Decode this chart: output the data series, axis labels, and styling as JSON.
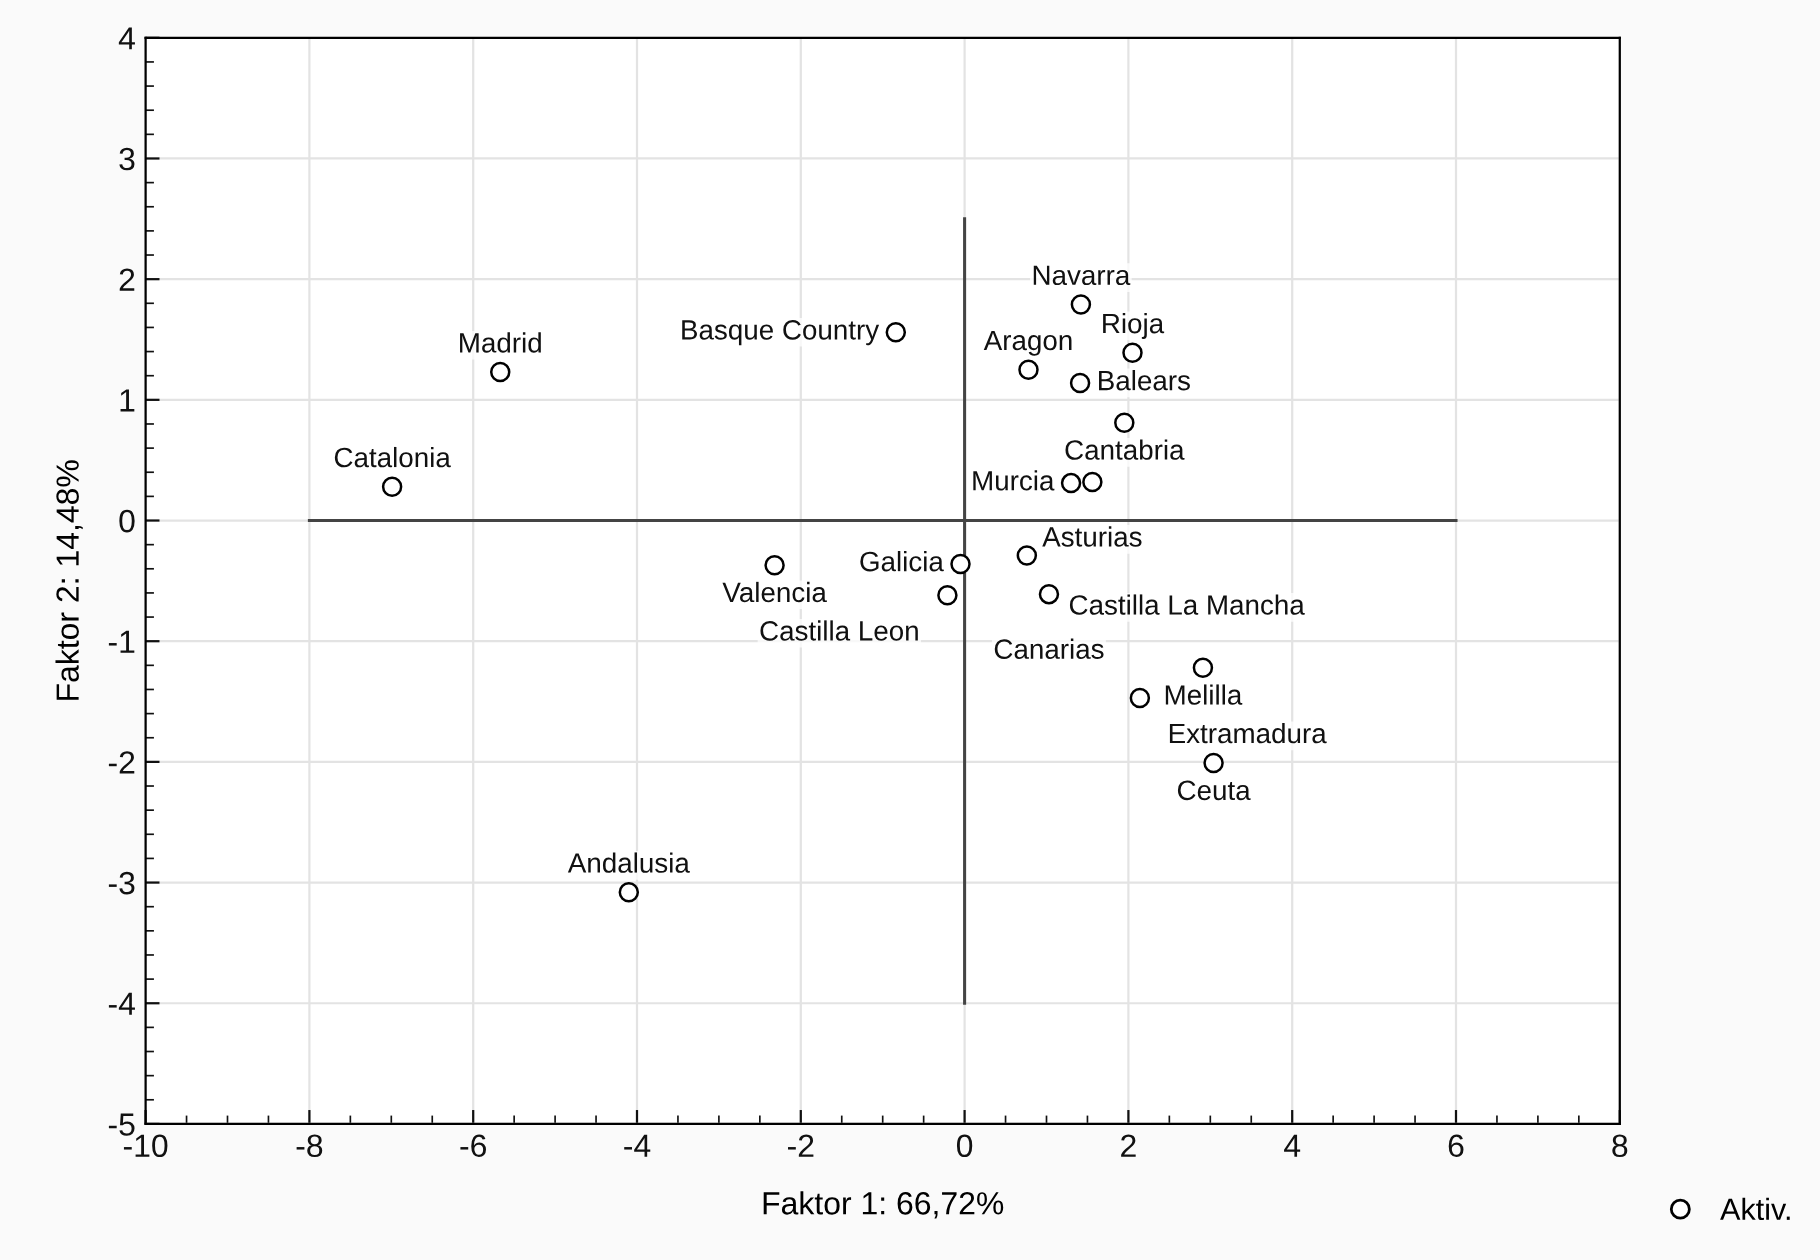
{
  "chart_data": {
    "type": "scatter",
    "xlabel": "Faktor 1: 66,72%",
    "ylabel": "Faktor 2: 14,48%",
    "xlim": [
      -10,
      8
    ],
    "xticks": [
      -10,
      -8,
      -6,
      -4,
      -2,
      0,
      2,
      4,
      6,
      8
    ],
    "ylim": [
      -5,
      4
    ],
    "yticks": [
      -5,
      -4,
      -3,
      -2,
      -1,
      0,
      1,
      2,
      3,
      4
    ],
    "grid": true,
    "legend": "bottom right",
    "marker": "circle",
    "series": [
      {
        "type": "line",
        "marker": "none",
        "color": "#444444",
        "x": [
          -8,
          6
        ],
        "values": [
          0,
          0
        ]
      },
      {
        "type": "line",
        "marker": "none",
        "color": "#444444",
        "x": [
          0,
          0
        ],
        "values": [
          -4,
          2.5
        ]
      },
      {
        "name": "Aktiv.",
        "color": "#000000",
        "x": [
          -6.99,
          -5.67,
          -2.32,
          -4.1,
          -0.84,
          1.42,
          2.05,
          0.78,
          1.41,
          1.95,
          1.3,
          1.56,
          0.76,
          -0.05,
          -0.21,
          1.03,
          2.91,
          2.14,
          3.04
        ],
        "values": [
          0.28,
          1.23,
          -0.37,
          -3.08,
          1.56,
          1.79,
          1.39,
          1.25,
          1.14,
          0.81,
          0.31,
          0.32,
          -0.29,
          -0.36,
          -0.62,
          -0.61,
          -1.22,
          -1.47,
          -2.01
        ]
      }
    ],
    "annotations": [
      {
        "text": "Catalonia",
        "x": -6.99,
        "y": 0.28
      },
      {
        "text": "Madrid",
        "x": -5.67,
        "y": 1.23
      },
      {
        "text": "Valencia",
        "x": -2.32,
        "y": -0.37
      },
      {
        "text": "Andalusia",
        "x": -4.1,
        "y": -3.08
      },
      {
        "text": "Basque Country",
        "x": -0.84,
        "y": 1.56
      },
      {
        "text": "Navarra",
        "x": 1.42,
        "y": 1.79
      },
      {
        "text": "Rioja",
        "x": 2.05,
        "y": 1.39
      },
      {
        "text": "Aragon",
        "x": 0.78,
        "y": 1.25
      },
      {
        "text": "Balears",
        "x": 1.41,
        "y": 1.14
      },
      {
        "text": "Cantabria",
        "x": 1.95,
        "y": 0.81
      },
      {
        "text": "Murcia",
        "x": 1.3,
        "y": 0.31
      },
      {
        "text": "Asturias",
        "x": 1.56,
        "y": 0.32
      },
      {
        "text": "Castilla La Mancha",
        "x": 0.76,
        "y": -0.29
      },
      {
        "text": "Galicia",
        "x": -0.05,
        "y": -0.36
      },
      {
        "text": "Castilla Leon",
        "x": -0.21,
        "y": -0.62
      },
      {
        "text": "Canarias",
        "x": 1.03,
        "y": -0.61
      },
      {
        "text": "Melilla",
        "x": 2.91,
        "y": -1.22
      },
      {
        "text": "Extramadura",
        "x": 2.14,
        "y": -1.47
      },
      {
        "text": "Ceuta",
        "x": 3.04,
        "y": -2.01
      }
    ]
  }
}
